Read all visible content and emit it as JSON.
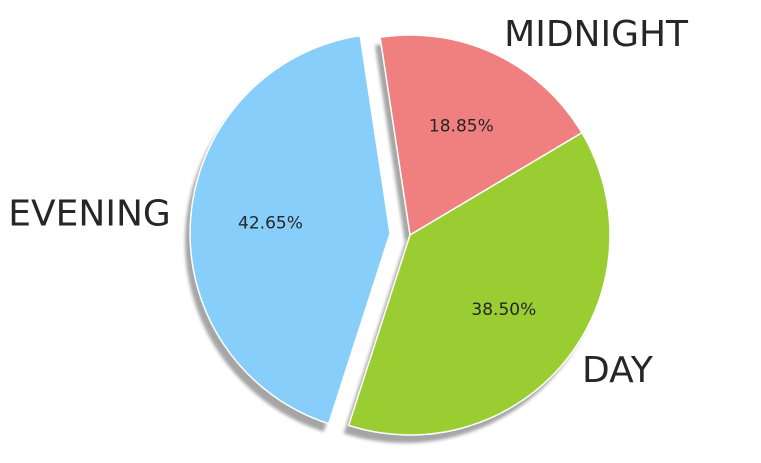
{
  "chart_data": {
    "type": "pie",
    "title": "",
    "slices": [
      {
        "label": "MIDNIGHT",
        "value": 18.85,
        "display": "18.85%",
        "color": "#F08080",
        "exploded": false
      },
      {
        "label": "DAY",
        "value": 38.5,
        "display": "38.50%",
        "color": "#9ACD32",
        "exploded": false
      },
      {
        "label": "EVENING",
        "value": 42.65,
        "display": "42.65%",
        "color": "#87CEFA",
        "exploded": true
      }
    ],
    "shadow": true,
    "start_angle": "top",
    "legend": "none"
  }
}
